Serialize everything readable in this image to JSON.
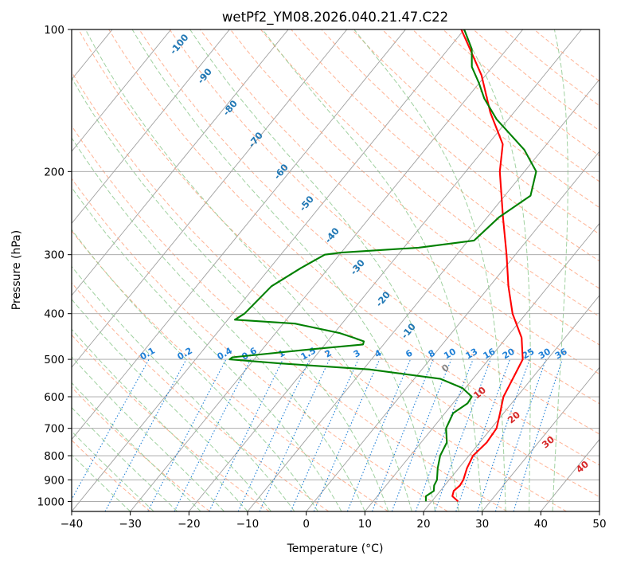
{
  "chart_data": {
    "type": "line",
    "subtype": "skew-T log-P diagram",
    "title": "wetPf2_YM08.2026.040.21.47.C22",
    "xlabel": "Temperature (°C)",
    "ylabel": "Pressure (hPa)",
    "xlim": [
      -40,
      50
    ],
    "ylim": [
      1050,
      100
    ],
    "y_scale": "log",
    "grid": true,
    "x_ticks": [
      -40,
      -30,
      -20,
      -10,
      0,
      10,
      20,
      30,
      40,
      50
    ],
    "x_tick_labels": [
      "−40",
      "−30",
      "−20",
      "−10",
      "0",
      "10",
      "20",
      "30",
      "40",
      "50"
    ],
    "y_ticks": [
      100,
      200,
      300,
      400,
      500,
      600,
      700,
      800,
      900,
      1000
    ],
    "y_tick_labels": [
      "100",
      "200",
      "300",
      "400",
      "500",
      "600",
      "700",
      "800",
      "900",
      "1000"
    ],
    "colors": {
      "temperature": "#ff0000",
      "dewpoint": "#008000",
      "isotherm": "#a0a0a0",
      "dry_adiabat": "#ffa07a",
      "moist_adiabat": "#8fc98f",
      "mixing_ratio": "#1e7fd6",
      "temp_label": "#1f77b4",
      "theta_label": "#d62728"
    },
    "isotherm_labels": [
      {
        "t": -100,
        "text": "-100"
      },
      {
        "t": -90,
        "text": "-90"
      },
      {
        "t": -80,
        "text": "-80"
      },
      {
        "t": -70,
        "text": "-70"
      },
      {
        "t": -60,
        "text": "-60"
      },
      {
        "t": -50,
        "text": "-50"
      },
      {
        "t": -40,
        "text": "-40"
      },
      {
        "t": -30,
        "text": "-30"
      },
      {
        "t": -20,
        "text": "-20"
      },
      {
        "t": -10,
        "text": "-10"
      }
    ],
    "mixing_ratio_lines": [
      0.1,
      0.2,
      0.4,
      0.6,
      1,
      1.5,
      2,
      3,
      4,
      6,
      8,
      10,
      13,
      16,
      20,
      25,
      30,
      36
    ],
    "mixing_ratio_labels": [
      "0.1",
      "0.2",
      "0.4",
      "0.6",
      "1",
      "1.5",
      "2",
      "3",
      "4",
      "6",
      "8",
      "10",
      "13",
      "16",
      "20",
      "25",
      "30",
      "36"
    ],
    "theta_labels": [
      {
        "t": 0,
        "text": "0"
      },
      {
        "t": 10,
        "text": "10"
      },
      {
        "t": 20,
        "text": "20"
      },
      {
        "t": 30,
        "text": "30"
      },
      {
        "t": 40,
        "text": "40"
      }
    ],
    "series": [
      {
        "key": "temperature",
        "points": [
          {
            "p": 1000,
            "t": 24.5
          },
          {
            "p": 975,
            "t": 22.8
          },
          {
            "p": 950,
            "t": 22.3
          },
          {
            "p": 925,
            "t": 22.6
          },
          {
            "p": 900,
            "t": 22.4
          },
          {
            "p": 850,
            "t": 21.4
          },
          {
            "p": 800,
            "t": 20.7
          },
          {
            "p": 750,
            "t": 21.2
          },
          {
            "p": 700,
            "t": 20.9
          },
          {
            "p": 650,
            "t": 19.4
          },
          {
            "p": 600,
            "t": 17.7
          },
          {
            "p": 550,
            "t": 16.8
          },
          {
            "p": 500,
            "t": 15.8
          },
          {
            "p": 450,
            "t": 12.6
          },
          {
            "p": 400,
            "t": 7.7
          },
          {
            "p": 350,
            "t": 3.2
          },
          {
            "p": 300,
            "t": -1.5
          },
          {
            "p": 250,
            "t": -7.3
          },
          {
            "p": 200,
            "t": -14.2
          },
          {
            "p": 175,
            "t": -17.5
          },
          {
            "p": 150,
            "t": -24.0
          },
          {
            "p": 125,
            "t": -30.7
          },
          {
            "p": 110,
            "t": -36.3
          },
          {
            "p": 100,
            "t": -40.5
          }
        ]
      },
      {
        "key": "dewpoint",
        "points": [
          {
            "p": 1000,
            "t": 19.0
          },
          {
            "p": 975,
            "t": 18.3
          },
          {
            "p": 950,
            "t": 18.9
          },
          {
            "p": 925,
            "t": 18.2
          },
          {
            "p": 900,
            "t": 17.9
          },
          {
            "p": 850,
            "t": 16.4
          },
          {
            "p": 800,
            "t": 15.1
          },
          {
            "p": 750,
            "t": 14.4
          },
          {
            "p": 700,
            "t": 12.3
          },
          {
            "p": 650,
            "t": 11.4
          },
          {
            "p": 620,
            "t": 12.5
          },
          {
            "p": 600,
            "t": 12.3
          },
          {
            "p": 575,
            "t": 9.5
          },
          {
            "p": 550,
            "t": 4.5
          },
          {
            "p": 525,
            "t": -9.0
          },
          {
            "p": 510,
            "t": -25.0
          },
          {
            "p": 500,
            "t": -34.2
          },
          {
            "p": 495,
            "t": -34.0
          },
          {
            "p": 475,
            "t": -21.0
          },
          {
            "p": 465,
            "t": -13.5
          },
          {
            "p": 458,
            "t": -13.8
          },
          {
            "p": 450,
            "t": -16.0
          },
          {
            "p": 440,
            "t": -19.0
          },
          {
            "p": 420,
            "t": -28.0
          },
          {
            "p": 412,
            "t": -38.8
          },
          {
            "p": 400,
            "t": -38.0
          },
          {
            "p": 350,
            "t": -37.2
          },
          {
            "p": 320,
            "t": -34.7
          },
          {
            "p": 300,
            "t": -32.5
          },
          {
            "p": 297,
            "t": -30.0
          },
          {
            "p": 290,
            "t": -17.5
          },
          {
            "p": 280,
            "t": -9.0
          },
          {
            "p": 250,
            "t": -8.0
          },
          {
            "p": 225,
            "t": -5.6
          },
          {
            "p": 200,
            "t": -8.0
          },
          {
            "p": 180,
            "t": -13.0
          },
          {
            "p": 155,
            "t": -22.0
          },
          {
            "p": 140,
            "t": -27.0
          },
          {
            "p": 130,
            "t": -30.0
          },
          {
            "p": 120,
            "t": -33.5
          },
          {
            "p": 110,
            "t": -36.0
          },
          {
            "p": 100,
            "t": -40.0
          }
        ]
      }
    ]
  }
}
